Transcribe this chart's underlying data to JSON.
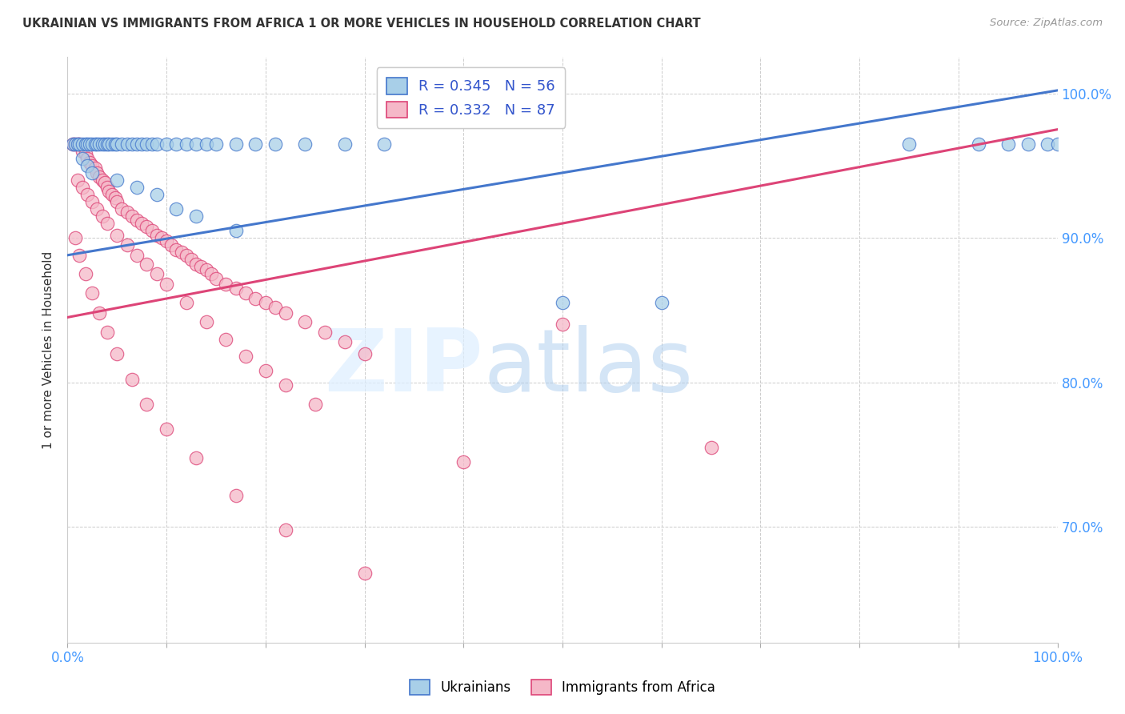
{
  "title": "UKRAINIAN VS IMMIGRANTS FROM AFRICA 1 OR MORE VEHICLES IN HOUSEHOLD CORRELATION CHART",
  "source": "Source: ZipAtlas.com",
  "ylabel": "1 or more Vehicles in Household",
  "yticks": [
    "70.0%",
    "80.0%",
    "90.0%",
    "100.0%"
  ],
  "ytick_vals": [
    0.7,
    0.8,
    0.9,
    1.0
  ],
  "legend_ukrainians": "Ukrainians",
  "legend_africa": "Immigrants from Africa",
  "r_ukrainian": 0.345,
  "n_ukrainian": 56,
  "r_africa": 0.332,
  "n_africa": 87,
  "color_ukrainian": "#a8cfe8",
  "color_africa": "#f5b8c8",
  "color_trendline_ukrainian": "#4477cc",
  "color_trendline_africa": "#dd4477",
  "xlim": [
    0.0,
    1.0
  ],
  "ylim": [
    0.62,
    1.025
  ],
  "ukr_trendline_x0": 0.0,
  "ukr_trendline_y0": 0.888,
  "ukr_trendline_x1": 1.0,
  "ukr_trendline_y1": 1.002,
  "afr_trendline_x0": 0.0,
  "afr_trendline_y0": 0.845,
  "afr_trendline_x1": 1.0,
  "afr_trendline_y1": 0.975,
  "ukr_x": [
    0.005,
    0.008,
    0.01,
    0.012,
    0.015,
    0.018,
    0.02,
    0.022,
    0.025,
    0.028,
    0.03,
    0.032,
    0.035,
    0.038,
    0.04,
    0.042,
    0.045,
    0.048,
    0.05,
    0.055,
    0.06,
    0.065,
    0.07,
    0.075,
    0.08,
    0.085,
    0.09,
    0.1,
    0.11,
    0.12,
    0.13,
    0.14,
    0.15,
    0.17,
    0.19,
    0.21,
    0.24,
    0.28,
    0.32,
    0.015,
    0.02,
    0.025,
    0.05,
    0.07,
    0.09,
    0.11,
    0.13,
    0.17,
    0.5,
    0.6,
    0.85,
    0.92,
    0.95,
    0.97,
    0.99,
    1.0
  ],
  "ukr_y": [
    0.965,
    0.965,
    0.965,
    0.965,
    0.965,
    0.965,
    0.965,
    0.965,
    0.965,
    0.965,
    0.965,
    0.965,
    0.965,
    0.965,
    0.965,
    0.965,
    0.965,
    0.965,
    0.965,
    0.965,
    0.965,
    0.965,
    0.965,
    0.965,
    0.965,
    0.965,
    0.965,
    0.965,
    0.965,
    0.965,
    0.965,
    0.965,
    0.965,
    0.965,
    0.965,
    0.965,
    0.965,
    0.965,
    0.965,
    0.955,
    0.95,
    0.945,
    0.94,
    0.935,
    0.93,
    0.92,
    0.915,
    0.905,
    0.855,
    0.855,
    0.965,
    0.965,
    0.965,
    0.965,
    0.965,
    0.965
  ],
  "afr_x": [
    0.005,
    0.007,
    0.01,
    0.012,
    0.015,
    0.018,
    0.02,
    0.022,
    0.025,
    0.028,
    0.03,
    0.032,
    0.035,
    0.038,
    0.04,
    0.042,
    0.045,
    0.048,
    0.05,
    0.055,
    0.06,
    0.065,
    0.07,
    0.075,
    0.08,
    0.085,
    0.09,
    0.095,
    0.1,
    0.105,
    0.11,
    0.115,
    0.12,
    0.125,
    0.13,
    0.135,
    0.14,
    0.145,
    0.15,
    0.16,
    0.17,
    0.18,
    0.19,
    0.2,
    0.21,
    0.22,
    0.24,
    0.26,
    0.28,
    0.3,
    0.01,
    0.015,
    0.02,
    0.025,
    0.03,
    0.035,
    0.04,
    0.05,
    0.06,
    0.07,
    0.08,
    0.09,
    0.1,
    0.12,
    0.14,
    0.16,
    0.18,
    0.2,
    0.22,
    0.25,
    0.008,
    0.012,
    0.018,
    0.025,
    0.032,
    0.04,
    0.05,
    0.065,
    0.08,
    0.1,
    0.13,
    0.17,
    0.22,
    0.3,
    0.4,
    0.5,
    0.65
  ],
  "afr_y": [
    0.965,
    0.965,
    0.965,
    0.965,
    0.96,
    0.958,
    0.955,
    0.952,
    0.95,
    0.948,
    0.945,
    0.942,
    0.94,
    0.938,
    0.935,
    0.932,
    0.93,
    0.928,
    0.925,
    0.92,
    0.918,
    0.915,
    0.912,
    0.91,
    0.908,
    0.905,
    0.902,
    0.9,
    0.898,
    0.895,
    0.892,
    0.89,
    0.888,
    0.885,
    0.882,
    0.88,
    0.878,
    0.875,
    0.872,
    0.868,
    0.865,
    0.862,
    0.858,
    0.855,
    0.852,
    0.848,
    0.842,
    0.835,
    0.828,
    0.82,
    0.94,
    0.935,
    0.93,
    0.925,
    0.92,
    0.915,
    0.91,
    0.902,
    0.895,
    0.888,
    0.882,
    0.875,
    0.868,
    0.855,
    0.842,
    0.83,
    0.818,
    0.808,
    0.798,
    0.785,
    0.9,
    0.888,
    0.875,
    0.862,
    0.848,
    0.835,
    0.82,
    0.802,
    0.785,
    0.768,
    0.748,
    0.722,
    0.698,
    0.668,
    0.745,
    0.84,
    0.755
  ]
}
